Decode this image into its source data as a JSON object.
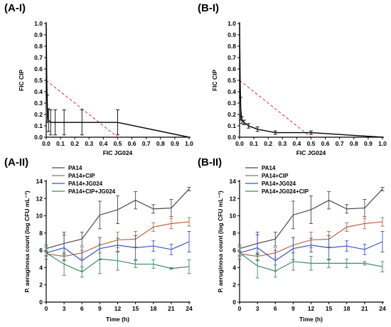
{
  "panel_labels": [
    "(A-I)",
    "(B-I)",
    "(A-II)",
    "(B-II)"
  ],
  "chart_data": [
    {
      "id": "A-I",
      "type": "line",
      "xlabel": "FIC JG024",
      "ylabel": "FIC CIP",
      "xlim": [
        0,
        1.0
      ],
      "ylim": [
        0,
        1.0
      ],
      "xticks": [
        0,
        0.1,
        0.2,
        0.3,
        0.4,
        0.5,
        0.6,
        0.7,
        0.8,
        0.9,
        1.0
      ],
      "yticks": [
        0,
        0.1,
        0.2,
        0.3,
        0.4,
        0.5,
        0.6,
        0.7,
        0.8,
        0.9,
        1.0
      ],
      "tick_labels_x": [
        "0.0",
        "0.1",
        "0.2",
        "0.3",
        "0.4",
        "0.5",
        "0.6",
        "0.7",
        "0.8",
        "0.9",
        "1.0"
      ],
      "tick_labels_y": [
        "0.0",
        "0.1",
        "0.2",
        "0.3",
        "0.4",
        "0.5",
        "0.6",
        "0.7",
        "0.8",
        "0.9",
        "1.0"
      ],
      "additivity_line": [
        [
          0,
          0.5
        ],
        [
          0.5,
          0
        ]
      ],
      "isobologram": {
        "x": [
          0,
          0.004,
          0.008,
          0.016,
          0.031,
          0.063,
          0.125,
          0.25,
          0.5,
          1.0
        ],
        "y": [
          1.0,
          0.5,
          0.25,
          0.15,
          0.13,
          0.13,
          0.13,
          0.13,
          0.13,
          0
        ],
        "err": [
          0,
          0,
          0.12,
          0.1,
          0.11,
          0.11,
          0.11,
          0.11,
          0.11,
          0
        ]
      }
    },
    {
      "id": "B-I",
      "type": "line",
      "xlabel": "FIC JG024",
      "ylabel": "FIC CIP",
      "xlim": [
        0,
        1.0
      ],
      "ylim": [
        0,
        1.0
      ],
      "xticks": [
        0,
        0.1,
        0.2,
        0.3,
        0.4,
        0.5,
        0.6,
        0.7,
        0.8,
        0.9,
        1.0
      ],
      "yticks": [
        0,
        0.1,
        0.2,
        0.3,
        0.4,
        0.5,
        0.6,
        0.7,
        0.8,
        0.9,
        1.0
      ],
      "tick_labels_x": [
        "0.0",
        "0.1",
        "0.2",
        "0.3",
        "0.4",
        "0.5",
        "0.6",
        "0.7",
        "0.8",
        "0.9",
        "1.0"
      ],
      "tick_labels_y": [
        "0.0",
        "0.1",
        "0.2",
        "0.3",
        "0.4",
        "0.5",
        "0.6",
        "0.7",
        "0.8",
        "0.9",
        "1.0"
      ],
      "additivity_line": [
        [
          0,
          0.5
        ],
        [
          0.5,
          0
        ]
      ],
      "isobologram": {
        "x": [
          0,
          0.004,
          0.008,
          0.016,
          0.031,
          0.063,
          0.125,
          0.25,
          0.5,
          1.0
        ],
        "y": [
          1.0,
          0.5,
          0.25,
          0.15,
          0.13,
          0.1,
          0.07,
          0.04,
          0.04,
          0
        ],
        "err": [
          0,
          0,
          0.1,
          0.03,
          0.02,
          0.02,
          0.02,
          0.015,
          0.015,
          0
        ]
      }
    },
    {
      "id": "A-II",
      "type": "line",
      "xlabel": "Time (h)",
      "ylabel": "P. aeruginosa count (log CFU mL⁻¹)",
      "xlim": [
        0,
        24
      ],
      "ylim": [
        0,
        14
      ],
      "xticks": [
        0,
        3,
        6,
        9,
        12,
        15,
        18,
        21,
        24
      ],
      "yticks": [
        0,
        2,
        4,
        6,
        8,
        10,
        12,
        14
      ],
      "legend_position": "top-left",
      "x": [
        0,
        3,
        6,
        9,
        12,
        15,
        18,
        21,
        24
      ],
      "series": [
        {
          "name": "PA14",
          "color": "#4a4a4a",
          "values": [
            6.2,
            6.8,
            7.3,
            10.1,
            10.7,
            11.8,
            10.8,
            10.9,
            13.1
          ],
          "err": [
            0.4,
            1.3,
            0.8,
            1.6,
            1.6,
            1.0,
            0.5,
            1.0,
            0.2
          ]
        },
        {
          "name": "PA14+CIP",
          "color": "#b5694a",
          "values": [
            5.6,
            5.3,
            5.7,
            6.6,
            7.2,
            7.3,
            8.7,
            9.1,
            9.3
          ],
          "err": [
            0.3,
            0.4,
            0.6,
            0.9,
            0.9,
            0.9,
            0.5,
            0.6,
            0.5
          ]
        },
        {
          "name": "PA14+JG024",
          "color": "#3d54b8",
          "values": [
            5.7,
            6.3,
            4.8,
            6.2,
            6.6,
            6.3,
            6.5,
            6.1,
            7.0
          ],
          "err": [
            0.7,
            1.5,
            1.2,
            1.3,
            0.8,
            1.4,
            0.6,
            0.6,
            1.2
          ]
        },
        {
          "name": "PA14+CIP+JG024",
          "color": "#3f8a64",
          "values": [
            5.7,
            4.4,
            3.5,
            5.0,
            4.8,
            4.4,
            4.4,
            3.9,
            4.1
          ],
          "err": [
            0.3,
            1.3,
            0.6,
            1.7,
            1.1,
            0.4,
            0.5,
            0.1,
            0.8
          ]
        }
      ]
    },
    {
      "id": "B-II",
      "type": "line",
      "xlabel": "Time (h)",
      "ylabel": "P. aeruginosa count (log CFU mL⁻¹)",
      "xlim": [
        0,
        24
      ],
      "ylim": [
        0,
        14
      ],
      "xticks": [
        0,
        3,
        6,
        9,
        12,
        15,
        18,
        21,
        24
      ],
      "yticks": [
        0,
        2,
        4,
        6,
        8,
        10,
        12,
        14
      ],
      "legend_position": "top-left",
      "x": [
        0,
        3,
        6,
        9,
        12,
        15,
        18,
        21,
        24
      ],
      "series": [
        {
          "name": "PA14",
          "color": "#4a4a4a",
          "values": [
            6.2,
            6.8,
            7.3,
            10.1,
            10.7,
            11.8,
            10.8,
            10.9,
            13.1
          ],
          "err": [
            0.4,
            1.3,
            0.8,
            1.6,
            1.6,
            1.0,
            0.5,
            1.0,
            0.2
          ]
        },
        {
          "name": "PA14+CIP",
          "color": "#b5694a",
          "values": [
            5.6,
            5.3,
            5.7,
            6.6,
            7.2,
            7.3,
            8.7,
            9.1,
            9.3
          ],
          "err": [
            0.3,
            0.4,
            0.6,
            0.9,
            0.9,
            0.9,
            0.5,
            0.6,
            0.5
          ]
        },
        {
          "name": "PA14+JG024",
          "color": "#3d54b8",
          "values": [
            5.7,
            6.3,
            4.8,
            6.2,
            6.6,
            6.3,
            6.5,
            6.1,
            7.0
          ],
          "err": [
            0.7,
            1.5,
            1.2,
            1.3,
            0.8,
            1.4,
            0.6,
            0.6,
            1.2
          ]
        },
        {
          "name": "PA14+JG024+CIP",
          "color": "#3f8a64",
          "values": [
            5.7,
            4.2,
            3.6,
            4.7,
            4.5,
            4.5,
            4.5,
            4.5,
            4.1
          ],
          "err": [
            0.3,
            1.4,
            0.7,
            1.0,
            0.8,
            0.5,
            0.5,
            0.2,
            0.6
          ]
        }
      ]
    }
  ]
}
